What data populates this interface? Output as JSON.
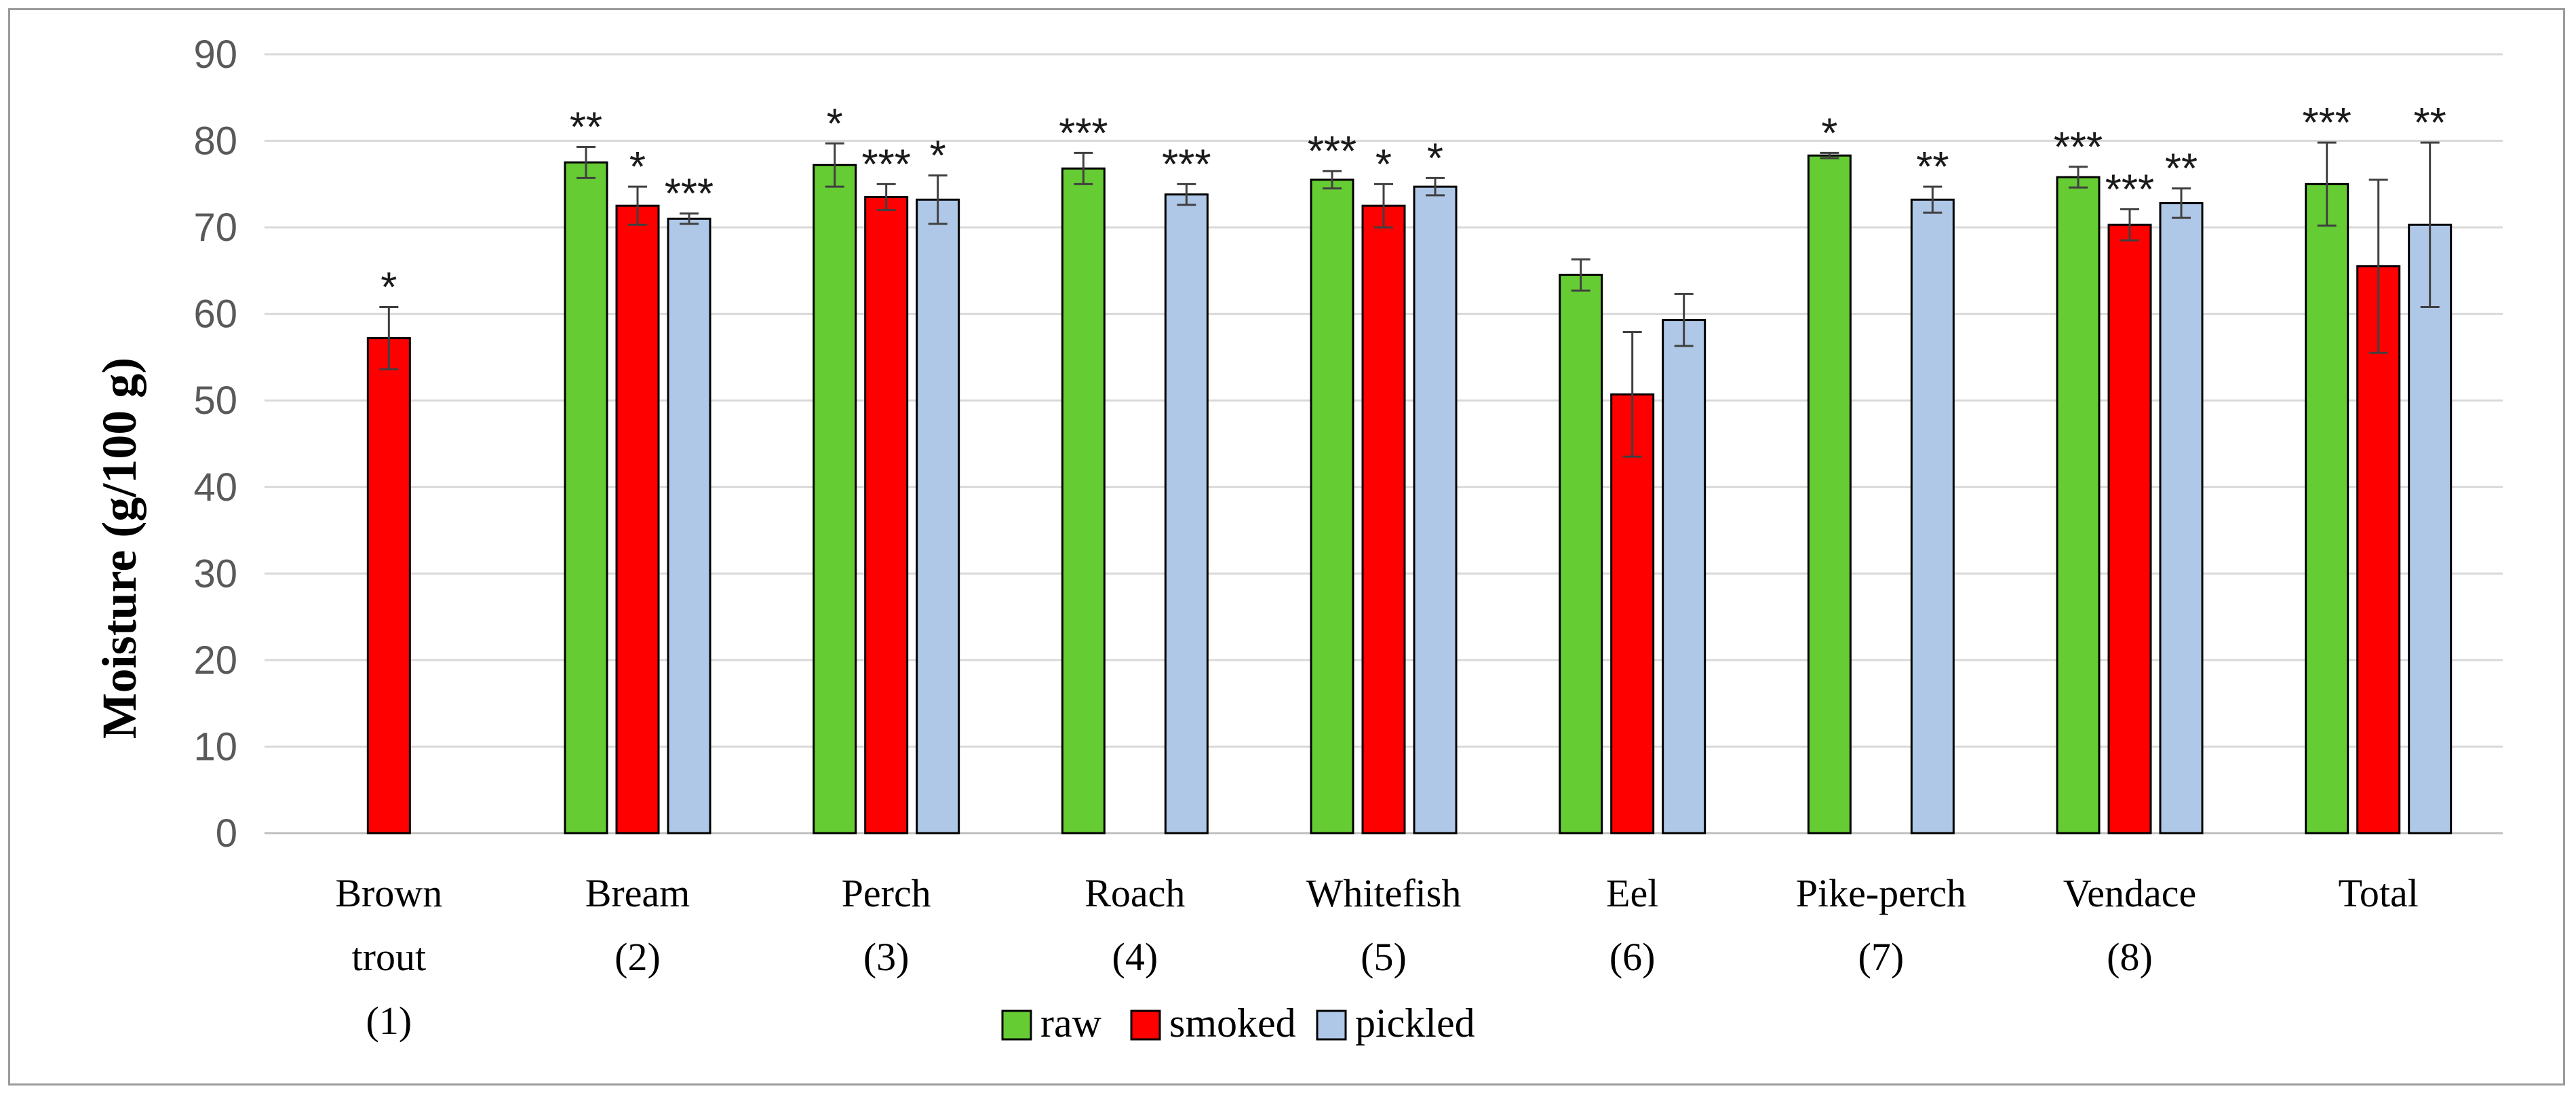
{
  "chart_data": {
    "type": "bar",
    "title": "",
    "xlabel": "",
    "ylabel": "Moisture (g/100 g)",
    "ylim": [
      0,
      90
    ],
    "yticks": [
      0,
      10,
      20,
      30,
      40,
      50,
      60,
      70,
      80,
      90
    ],
    "grid": true,
    "legend_position": "bottom",
    "categories": [
      [
        "Brown",
        "trout",
        "(1)"
      ],
      [
        "Bream",
        "(2)"
      ],
      [
        "Perch",
        "(3)"
      ],
      [
        "Roach",
        "(4)"
      ],
      [
        "Whitefish",
        "(5)"
      ],
      [
        "Eel",
        "(6)"
      ],
      [
        "Pike-perch",
        "(7)"
      ],
      [
        "Vendace",
        "(8)"
      ],
      [
        "Total"
      ]
    ],
    "series": [
      {
        "name": "raw",
        "color": "#66cc33",
        "values": [
          null,
          77.5,
          77.2,
          76.8,
          75.5,
          64.5,
          78.3,
          75.8,
          75.0
        ],
        "errors": [
          null,
          1.8,
          2.5,
          1.8,
          1.0,
          1.8,
          0.3,
          1.2,
          4.8
        ],
        "labels": [
          "",
          "**",
          "*",
          "***",
          "***",
          "",
          "*",
          "***",
          "***"
        ]
      },
      {
        "name": "smoked",
        "color": "#ff0000",
        "values": [
          57.2,
          72.5,
          73.5,
          null,
          72.5,
          50.7,
          null,
          70.3,
          65.5
        ],
        "errors": [
          3.6,
          2.2,
          1.5,
          null,
          2.5,
          7.2,
          null,
          1.8,
          10.0
        ],
        "labels": [
          "*",
          "*",
          "***",
          "",
          "*",
          "",
          "",
          "***",
          ""
        ]
      },
      {
        "name": "pickled",
        "color": "#afc8e8",
        "values": [
          null,
          71.0,
          73.2,
          73.8,
          74.7,
          59.3,
          73.2,
          72.8,
          70.3
        ],
        "errors": [
          null,
          0.6,
          2.8,
          1.2,
          1.0,
          3.0,
          1.5,
          1.7,
          9.5
        ],
        "labels": [
          "",
          "***",
          "*",
          "***",
          "*",
          "",
          "**",
          "**",
          "**"
        ]
      }
    ]
  }
}
